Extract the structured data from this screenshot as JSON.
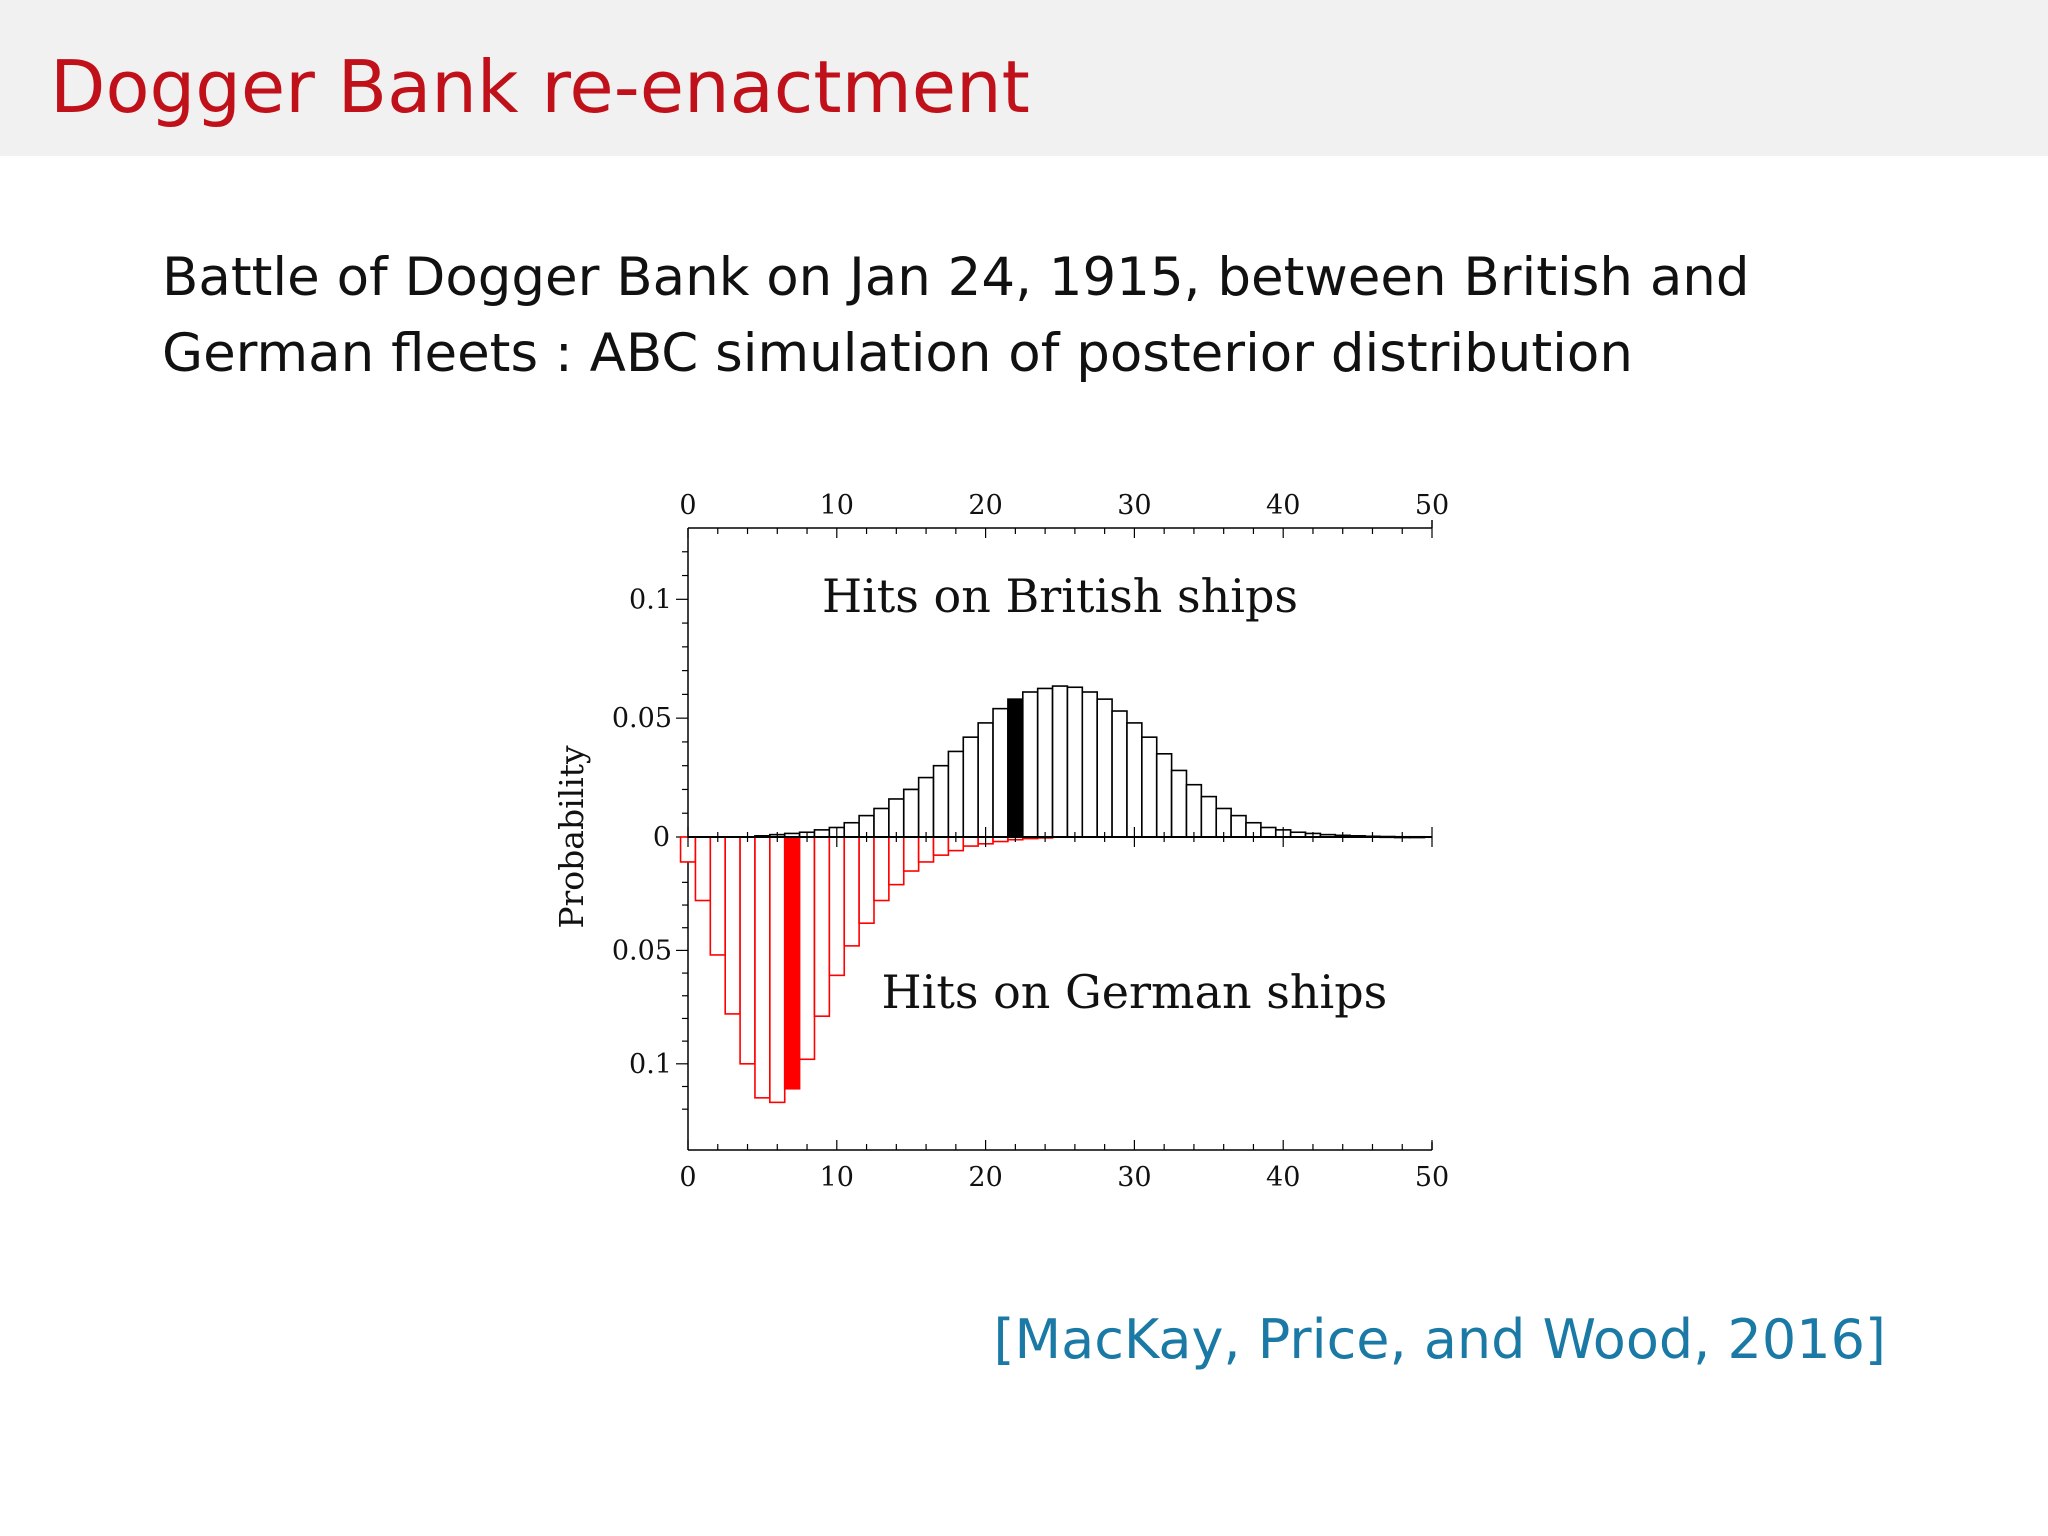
{
  "slide": {
    "title": "Dogger Bank re-enactment",
    "intro_line1": "Battle of Dogger Bank on Jan 24, 1915, between British and",
    "intro_line2": "German fleets : ABC simulation of posterior distribution",
    "citation": "[MacKay, Price, and Wood, 2016]",
    "title_color": "#c0111a",
    "citation_color": "#1a7aa5"
  },
  "chart_data": {
    "type": "bar",
    "ylabel": "Probability",
    "xlim": [
      0,
      50
    ],
    "ylim_top": 0.13,
    "ylim_bottom": 0.138,
    "x_ticks": [
      "0",
      "10",
      "20",
      "30",
      "40",
      "50"
    ],
    "y_ticks_top": [
      "0.05",
      "0.1"
    ],
    "y_ticks_bottom": [
      "0.05",
      "0.1"
    ],
    "y_zero_label": "0",
    "annotations": [
      "Hits on British ships",
      "Hits on German ships"
    ],
    "series": [
      {
        "name": "Hits on British ships",
        "direction": "up",
        "color": "#000000",
        "highlight_x": 22,
        "x": [
          0,
          1,
          2,
          3,
          4,
          5,
          6,
          7,
          8,
          9,
          10,
          11,
          12,
          13,
          14,
          15,
          15,
          16,
          17,
          18,
          19,
          20,
          21,
          22,
          23,
          24,
          25,
          26,
          27,
          28,
          29,
          30,
          31,
          32,
          33,
          34,
          35,
          36,
          37,
          38,
          39,
          40,
          41,
          42,
          43,
          44,
          45,
          46,
          47,
          48,
          49,
          50
        ],
        "values": [
          0,
          0,
          0,
          0,
          0,
          0.0005,
          0.001,
          0.0015,
          0.002,
          0.003,
          0.004,
          0.006,
          0.009,
          0.012,
          0.016,
          0.02,
          0.02,
          0.025,
          0.03,
          0.036,
          0.042,
          0.048,
          0.054,
          0.058,
          0.061,
          0.0625,
          0.0635,
          0.063,
          0.061,
          0.058,
          0.053,
          0.048,
          0.042,
          0.035,
          0.028,
          0.022,
          0.017,
          0.012,
          0.009,
          0.006,
          0.004,
          0.003,
          0.002,
          0.0015,
          0.001,
          0.0007,
          0.0005,
          0.0003,
          0.0002,
          0.0001,
          0.0001,
          0
        ]
      },
      {
        "name": "Hits on German ships",
        "direction": "down",
        "color": "#ff0000",
        "highlight_x": 7,
        "x": [
          0,
          1,
          2,
          3,
          4,
          5,
          6,
          7,
          8,
          9,
          10,
          11,
          12,
          13,
          14,
          15,
          16,
          17,
          18,
          19,
          20,
          21,
          22,
          23,
          24
        ],
        "values": [
          0.011,
          0.028,
          0.052,
          0.078,
          0.1,
          0.115,
          0.117,
          0.111,
          0.098,
          0.079,
          0.061,
          0.048,
          0.038,
          0.028,
          0.021,
          0.015,
          0.011,
          0.008,
          0.006,
          0.004,
          0.003,
          0.002,
          0.0012,
          0.0007,
          0.0004
        ]
      }
    ]
  }
}
